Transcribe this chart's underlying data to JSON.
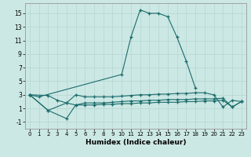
{
  "bg_color": "#cce8e4",
  "grid_color": "#b8d8d4",
  "line_color": "#1a6b6b",
  "xlabel": "Humidex (Indice chaleur)",
  "xlim": [
    -0.5,
    23.5
  ],
  "ylim": [
    -2.0,
    16.5
  ],
  "yticks": [
    -1,
    1,
    3,
    5,
    7,
    9,
    11,
    13,
    15
  ],
  "xticks": [
    0,
    1,
    2,
    3,
    4,
    5,
    6,
    7,
    8,
    9,
    10,
    11,
    12,
    13,
    14,
    15,
    16,
    17,
    18,
    19,
    20,
    21,
    22,
    23
  ],
  "line1_x": [
    0,
    1,
    10,
    11,
    12,
    13,
    14,
    15,
    16,
    17,
    18
  ],
  "line1_y": [
    3.0,
    2.7,
    6.0,
    11.5,
    15.5,
    15.0,
    15.0,
    14.5,
    11.5,
    8.0,
    4.0
  ],
  "line2_x": [
    0,
    2,
    3,
    4,
    5,
    6,
    7,
    8,
    9,
    10,
    11,
    12,
    13,
    14,
    15,
    16,
    17,
    18,
    19,
    20,
    21,
    22,
    23
  ],
  "line2_y": [
    3.0,
    2.9,
    2.2,
    1.8,
    3.0,
    2.7,
    2.7,
    2.7,
    2.7,
    2.8,
    2.9,
    3.0,
    3.0,
    3.1,
    3.1,
    3.2,
    3.2,
    3.3,
    3.3,
    3.0,
    1.2,
    2.2,
    2.0
  ],
  "line3_x": [
    0,
    2,
    4,
    5,
    6,
    7,
    8,
    9,
    10,
    11,
    12,
    13,
    14,
    15,
    16,
    17,
    18,
    19,
    20,
    21,
    22,
    23
  ],
  "line3_y": [
    3.0,
    0.7,
    -0.5,
    1.5,
    1.8,
    1.8,
    1.8,
    1.9,
    2.0,
    2.1,
    2.1,
    2.2,
    2.2,
    2.3,
    2.3,
    2.3,
    2.4,
    2.4,
    2.4,
    2.5,
    1.2,
    2.0
  ],
  "line4_x": [
    0,
    2,
    4,
    5,
    6,
    7,
    8,
    9,
    10,
    11,
    12,
    13,
    14,
    15,
    16,
    17,
    18,
    19,
    20,
    21,
    22,
    23
  ],
  "line4_y": [
    3.0,
    0.7,
    1.8,
    1.5,
    1.5,
    1.5,
    1.6,
    1.6,
    1.7,
    1.7,
    1.8,
    1.8,
    1.9,
    1.9,
    1.9,
    2.0,
    2.0,
    2.1,
    2.1,
    2.2,
    1.2,
    2.0
  ]
}
